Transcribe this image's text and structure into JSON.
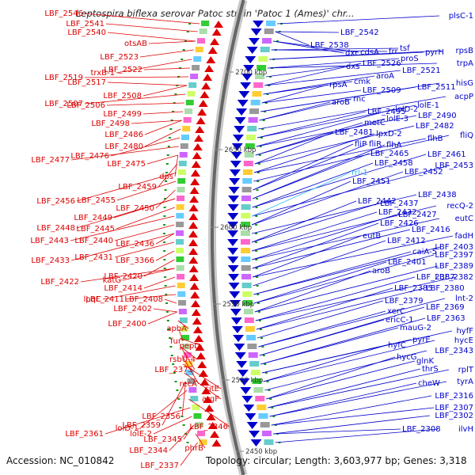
{
  "title": "Leptospira biflexa serovar Patoc strain 'Patoc 1 (Ames)' chr...",
  "footer": {
    "accession": "Accession: NC_010842",
    "topology": "Topology: circular; Length: 3,603,977 bp; Genes: 3,318"
  },
  "colors": {
    "left": "#dd0000",
    "right": "#0000cc",
    "rrna": "#33bbee",
    "ruler": "#888888"
  },
  "ruler_ticks": [
    {
      "label": "2700 kbp"
    },
    {
      "label": "2650 kbp"
    },
    {
      "label": "2600 kbp"
    },
    {
      "label": "2550 kbp"
    },
    {
      "label": "2500 kbp"
    },
    {
      "label": "2450 kbp"
    }
  ],
  "left_labels": [
    {
      "text": "LBF_2546"
    },
    {
      "text": "LBF_2541"
    },
    {
      "text": "LBF_2540"
    },
    {
      "text": "otsAB"
    },
    {
      "text": "LBF_2523"
    },
    {
      "text": "trxB-1"
    },
    {
      "text": "LBF_2522"
    },
    {
      "text": "LBF_2519"
    },
    {
      "text": "LBF_2517"
    },
    {
      "text": "LBF_2508"
    },
    {
      "text": "LBF_2507"
    },
    {
      "text": "LBF_2506"
    },
    {
      "text": "LBF_2499"
    },
    {
      "text": "LBF_2498"
    },
    {
      "text": "LBF_2486"
    },
    {
      "text": "LBF_2480"
    },
    {
      "text": "LBF_2476"
    },
    {
      "text": "LBF_2477"
    },
    {
      "text": "LBF_2475"
    },
    {
      "text": "dps"
    },
    {
      "text": "LBF_2459"
    },
    {
      "text": "LBF_2456"
    },
    {
      "text": "LBF_2455"
    },
    {
      "text": "LBF_2450"
    },
    {
      "text": "LBF_2449"
    },
    {
      "text": "LBF_2448"
    },
    {
      "text": "LBF_2445"
    },
    {
      "text": "LBF_2443"
    },
    {
      "text": "LBF_2440"
    },
    {
      "text": "LBF_2436"
    },
    {
      "text": "LBF_2433"
    },
    {
      "text": "LBF_2431"
    },
    {
      "text": "LBF_3366"
    },
    {
      "text": "LBF_2420"
    },
    {
      "text": "LBF_2422"
    },
    {
      "text": "katG"
    },
    {
      "text": "LBF_2414"
    },
    {
      "text": "lpqC"
    },
    {
      "text": "LBF_2411"
    },
    {
      "text": "LBF_2408"
    },
    {
      "text": "LBF_2402"
    },
    {
      "text": "LBF_2400"
    },
    {
      "text": "apbA"
    },
    {
      "text": "fur"
    },
    {
      "text": "pepD"
    },
    {
      "text": "rsbU-4"
    },
    {
      "text": "LBF_2375"
    },
    {
      "text": "recA"
    },
    {
      "text": "citE"
    },
    {
      "text": "argF"
    },
    {
      "text": "LBF_2356"
    },
    {
      "text": "LBF_2359"
    },
    {
      "text": "lolD-1"
    },
    {
      "text": "LBF_2346"
    },
    {
      "text": "LBF_2361"
    },
    {
      "text": "lolE-2"
    },
    {
      "text": "LBF_2345"
    },
    {
      "text": "LBF_2344"
    },
    {
      "text": "phrB"
    },
    {
      "text": "LBF_2337"
    }
  ],
  "right_labels": [
    {
      "text": "plsC-1"
    },
    {
      "text": "LBF_2542"
    },
    {
      "text": "LBF_2538"
    },
    {
      "text": "dxr"
    },
    {
      "text": "cdsA"
    },
    {
      "text": "frr"
    },
    {
      "text": "tsf"
    },
    {
      "text": "pyrH"
    },
    {
      "text": "rpsB"
    },
    {
      "text": "proS"
    },
    {
      "text": "trpA"
    },
    {
      "text": "dxs"
    },
    {
      "text": "LBF_2526"
    },
    {
      "text": "LBF_2521"
    },
    {
      "text": "aroA"
    },
    {
      "text": "cmk"
    },
    {
      "text": "rpsA"
    },
    {
      "text": "LBF_2509"
    },
    {
      "text": "LBF_2511"
    },
    {
      "text": "hisG"
    },
    {
      "text": "rnc"
    },
    {
      "text": "aroB"
    },
    {
      "text": "acpP"
    },
    {
      "text": "lolE-1"
    },
    {
      "text": "LBF_2495"
    },
    {
      "text": "lolD-2"
    },
    {
      "text": "LBF_2490"
    },
    {
      "text": "lolE-3"
    },
    {
      "text": "metC"
    },
    {
      "text": "LBF_2482"
    },
    {
      "text": "LBF_2481"
    },
    {
      "text": "lpxD-2"
    },
    {
      "text": "flhB"
    },
    {
      "text": "fliQ"
    },
    {
      "text": "fliP"
    },
    {
      "text": "fliR"
    },
    {
      "text": "flhA"
    },
    {
      "text": "LBF_2465"
    },
    {
      "text": "LBF_2461"
    },
    {
      "text": "LBF_2458"
    },
    {
      "text": "LBF_2453"
    },
    {
      "text": "rrl-1"
    },
    {
      "text": "LBF_2452"
    },
    {
      "text": "LBF_2451"
    },
    {
      "text": "LBF_2438"
    },
    {
      "text": "LBF_2442"
    },
    {
      "text": "LBF_2437"
    },
    {
      "text": "recQ-2"
    },
    {
      "text": "LBF_2432"
    },
    {
      "text": "LBF_2427"
    },
    {
      "text": "eutC"
    },
    {
      "text": "LBF_2426"
    },
    {
      "text": "LBF_2416"
    },
    {
      "text": "fadH"
    },
    {
      "text": "eutB"
    },
    {
      "text": "LBF_2412"
    },
    {
      "text": "LBF_2403"
    },
    {
      "text": "caiA-5"
    },
    {
      "text": "LBF_2397"
    },
    {
      "text": "LBF_2401"
    },
    {
      "text": "LBF_2389"
    },
    {
      "text": "aroB"
    },
    {
      "text": "LBF_2387"
    },
    {
      "text": "LBF_2382"
    },
    {
      "text": "LBF_2385"
    },
    {
      "text": "LBF_2380"
    },
    {
      "text": "LBF_2379"
    },
    {
      "text": "lnt-2"
    },
    {
      "text": "xerC"
    },
    {
      "text": "LBF_2369"
    },
    {
      "text": "ericC-1"
    },
    {
      "text": "LBF_2363"
    },
    {
      "text": "mauG-2"
    },
    {
      "text": "hyfF"
    },
    {
      "text": "pyrE"
    },
    {
      "text": "hycE"
    },
    {
      "text": "hyfC"
    },
    {
      "text": "LBF_2343"
    },
    {
      "text": "hycG"
    },
    {
      "text": "glnK"
    },
    {
      "text": "thrS"
    },
    {
      "text": "rplT"
    },
    {
      "text": "cheW"
    },
    {
      "text": "tyrA"
    },
    {
      "text": "LBF_2316"
    },
    {
      "text": "LBF_2307"
    },
    {
      "text": "LBF_2302"
    },
    {
      "text": "LBF_2308"
    },
    {
      "text": "ilvH"
    }
  ]
}
